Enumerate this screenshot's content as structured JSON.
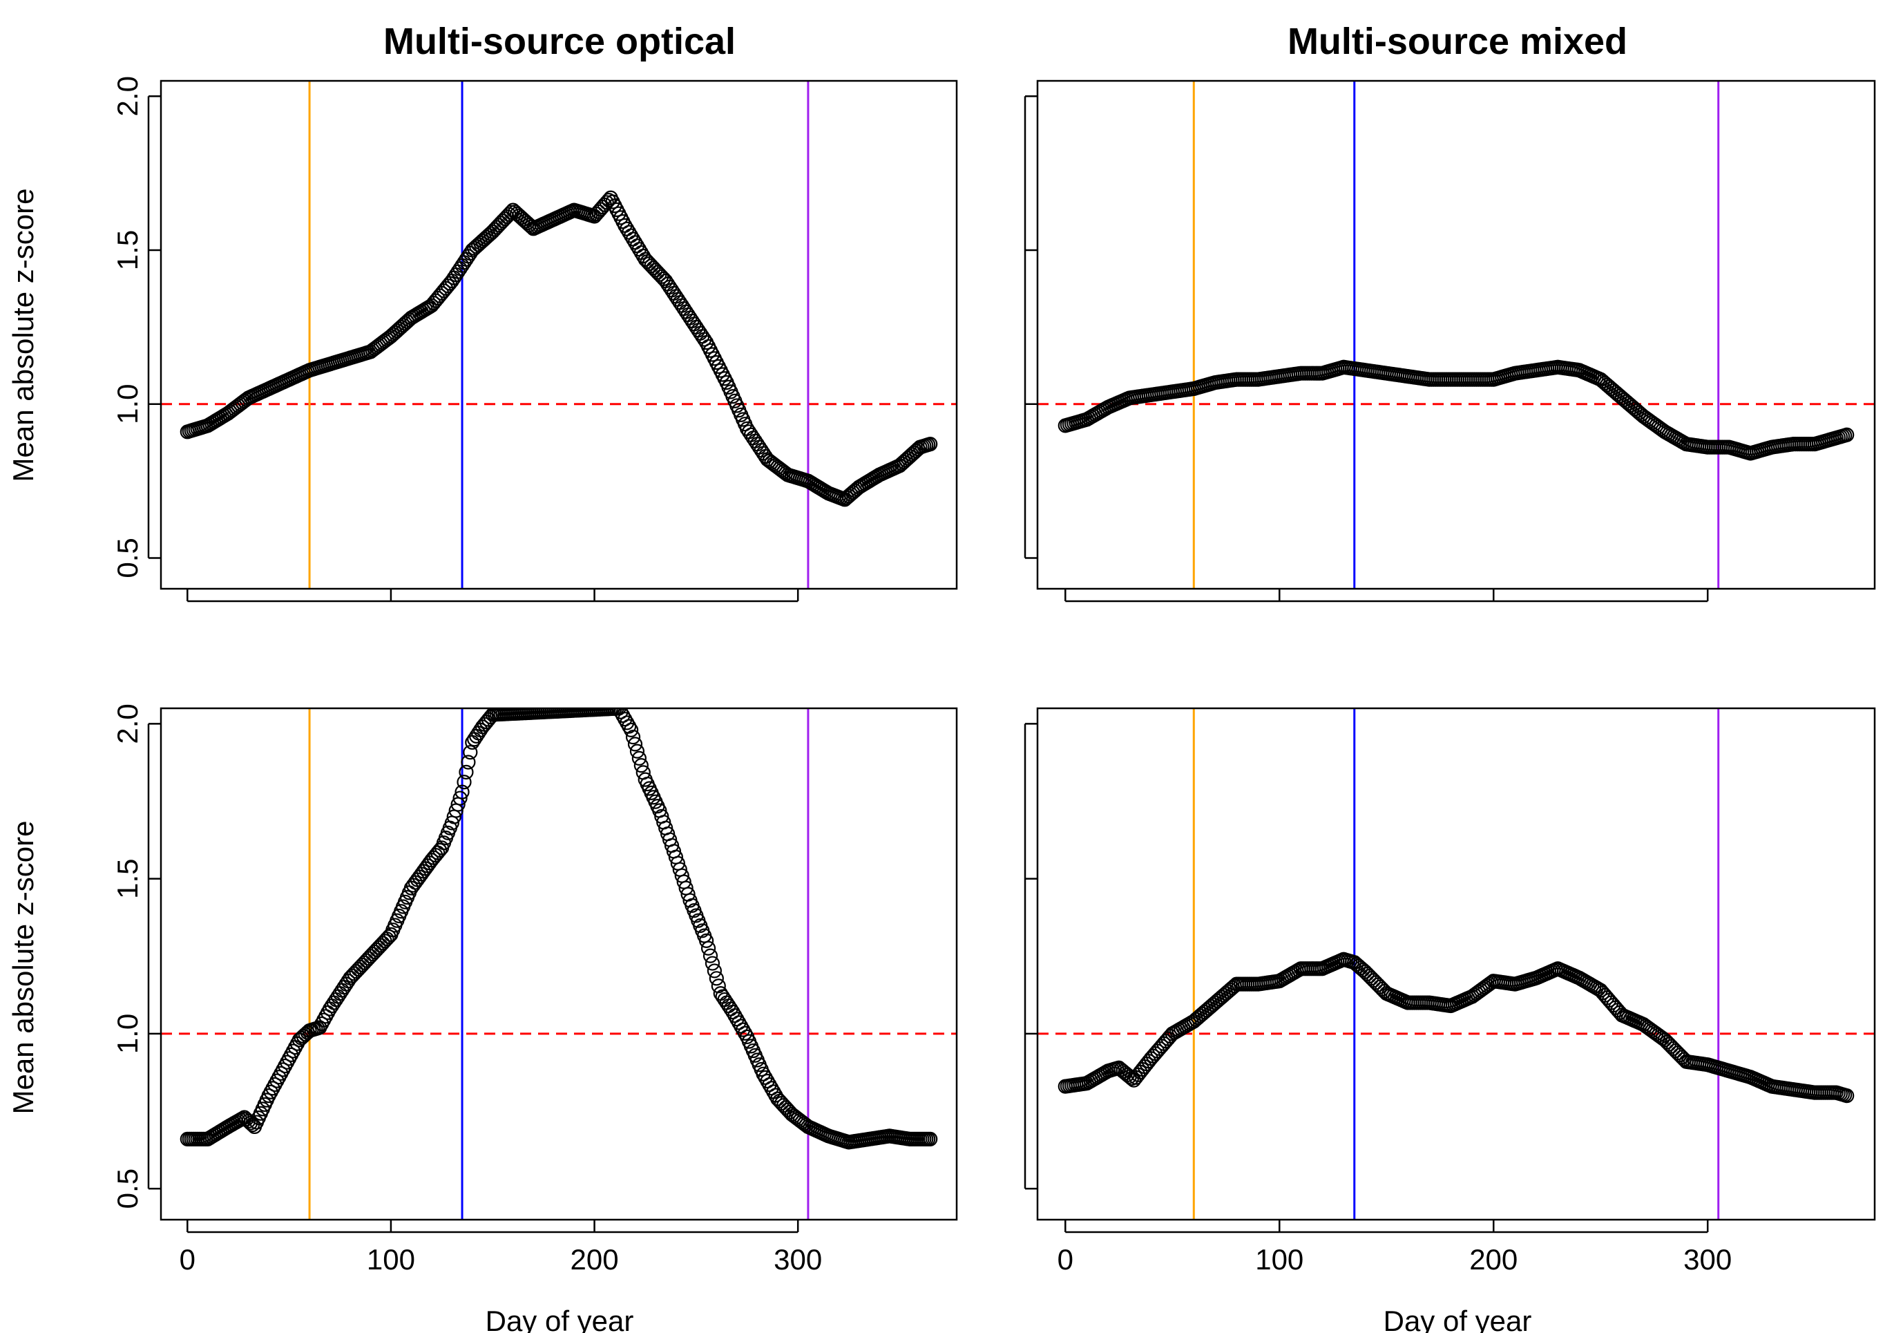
{
  "chart_data": [
    {
      "type": "scatter",
      "title": "Multi-source optical",
      "xlabel": "",
      "ylabel": "Mean absolute z-score",
      "xlim": [
        -13,
        378
      ],
      "ylim": [
        0.4,
        2.05
      ],
      "xticks": [
        0,
        100,
        200,
        300
      ],
      "show_xtick_labels": false,
      "yticks": [
        0.5,
        1.0,
        1.5,
        2.0
      ],
      "ytick_labels": [
        "0.5",
        "1.0",
        "1.5",
        "2.0"
      ],
      "reference_line": {
        "y": 1.0,
        "color": "#ff0000",
        "style": "dashed"
      },
      "vertical_lines": [
        {
          "x": 60,
          "color": "#ffa500"
        },
        {
          "x": 135,
          "color": "#0000ff"
        },
        {
          "x": 305,
          "color": "#a020f0"
        }
      ],
      "series": [
        {
          "marker": "open-circle",
          "color": "#000000",
          "points": [
            [
              0,
              0.91
            ],
            [
              10,
              0.93
            ],
            [
              20,
              0.97
            ],
            [
              30,
              1.02
            ],
            [
              40,
              1.05
            ],
            [
              50,
              1.08
            ],
            [
              60,
              1.11
            ],
            [
              70,
              1.13
            ],
            [
              80,
              1.15
            ],
            [
              90,
              1.17
            ],
            [
              100,
              1.22
            ],
            [
              110,
              1.28
            ],
            [
              120,
              1.32
            ],
            [
              130,
              1.4
            ],
            [
              135,
              1.45
            ],
            [
              140,
              1.5
            ],
            [
              150,
              1.56
            ],
            [
              160,
              1.63
            ],
            [
              170,
              1.57
            ],
            [
              180,
              1.6
            ],
            [
              190,
              1.63
            ],
            [
              200,
              1.61
            ],
            [
              208,
              1.67
            ],
            [
              215,
              1.58
            ],
            [
              225,
              1.47
            ],
            [
              235,
              1.4
            ],
            [
              245,
              1.3
            ],
            [
              255,
              1.2
            ],
            [
              265,
              1.07
            ],
            [
              275,
              0.92
            ],
            [
              285,
              0.82
            ],
            [
              295,
              0.77
            ],
            [
              305,
              0.75
            ],
            [
              315,
              0.71
            ],
            [
              323,
              0.69
            ],
            [
              330,
              0.73
            ],
            [
              340,
              0.77
            ],
            [
              350,
              0.8
            ],
            [
              360,
              0.86
            ],
            [
              365,
              0.87
            ]
          ]
        }
      ]
    },
    {
      "type": "scatter",
      "title": "Multi-source mixed",
      "xlabel": "",
      "ylabel": "",
      "xlim": [
        -13,
        378
      ],
      "ylim": [
        0.4,
        2.05
      ],
      "xticks": [
        0,
        100,
        200,
        300
      ],
      "show_xtick_labels": false,
      "yticks": [
        0.5,
        1.0,
        1.5,
        2.0
      ],
      "show_ytick_labels": false,
      "reference_line": {
        "y": 1.0,
        "color": "#ff0000",
        "style": "dashed"
      },
      "vertical_lines": [
        {
          "x": 60,
          "color": "#ffa500"
        },
        {
          "x": 135,
          "color": "#0000ff"
        },
        {
          "x": 305,
          "color": "#a020f0"
        }
      ],
      "series": [
        {
          "marker": "open-circle",
          "color": "#000000",
          "points": [
            [
              0,
              0.93
            ],
            [
              10,
              0.95
            ],
            [
              20,
              0.99
            ],
            [
              30,
              1.02
            ],
            [
              40,
              1.03
            ],
            [
              50,
              1.04
            ],
            [
              60,
              1.05
            ],
            [
              70,
              1.07
            ],
            [
              80,
              1.08
            ],
            [
              90,
              1.08
            ],
            [
              100,
              1.09
            ],
            [
              110,
              1.1
            ],
            [
              120,
              1.1
            ],
            [
              130,
              1.12
            ],
            [
              140,
              1.11
            ],
            [
              150,
              1.1
            ],
            [
              160,
              1.09
            ],
            [
              170,
              1.08
            ],
            [
              180,
              1.08
            ],
            [
              190,
              1.08
            ],
            [
              200,
              1.08
            ],
            [
              210,
              1.1
            ],
            [
              220,
              1.11
            ],
            [
              230,
              1.12
            ],
            [
              240,
              1.11
            ],
            [
              250,
              1.08
            ],
            [
              260,
              1.02
            ],
            [
              270,
              0.96
            ],
            [
              280,
              0.91
            ],
            [
              290,
              0.87
            ],
            [
              300,
              0.86
            ],
            [
              310,
              0.86
            ],
            [
              320,
              0.84
            ],
            [
              330,
              0.86
            ],
            [
              340,
              0.87
            ],
            [
              350,
              0.87
            ],
            [
              360,
              0.89
            ],
            [
              365,
              0.9
            ]
          ]
        }
      ]
    },
    {
      "type": "scatter",
      "title": "",
      "xlabel": "Day of year",
      "ylabel": "Mean absolute z-score",
      "xlim": [
        -13,
        378
      ],
      "ylim": [
        0.4,
        2.05
      ],
      "xticks": [
        0,
        100,
        200,
        300
      ],
      "xtick_labels": [
        "0",
        "100",
        "200",
        "300"
      ],
      "yticks": [
        0.5,
        1.0,
        1.5,
        2.0
      ],
      "ytick_labels": [
        "0.5",
        "1.0",
        "1.5",
        "2.0"
      ],
      "reference_line": {
        "y": 1.0,
        "color": "#ff0000",
        "style": "dashed"
      },
      "vertical_lines": [
        {
          "x": 60,
          "color": "#ffa500"
        },
        {
          "x": 135,
          "color": "#0000ff"
        },
        {
          "x": 305,
          "color": "#a020f0"
        }
      ],
      "series": [
        {
          "marker": "open-circle",
          "color": "#000000",
          "points": [
            [
              0,
              0.66
            ],
            [
              10,
              0.66
            ],
            [
              20,
              0.7
            ],
            [
              28,
              0.73
            ],
            [
              33,
              0.7
            ],
            [
              40,
              0.8
            ],
            [
              50,
              0.92
            ],
            [
              55,
              0.98
            ],
            [
              60,
              1.01
            ],
            [
              65,
              1.02
            ],
            [
              70,
              1.08
            ],
            [
              80,
              1.18
            ],
            [
              90,
              1.25
            ],
            [
              100,
              1.32
            ],
            [
              110,
              1.47
            ],
            [
              120,
              1.56
            ],
            [
              125,
              1.6
            ],
            [
              130,
              1.68
            ],
            [
              135,
              1.78
            ],
            [
              140,
              1.94
            ],
            [
              145,
              1.99
            ],
            [
              150,
              2.03
            ],
            [
              212,
              2.05
            ],
            [
              218,
              1.98
            ],
            [
              225,
              1.82
            ],
            [
              232,
              1.72
            ],
            [
              240,
              1.57
            ],
            [
              247,
              1.43
            ],
            [
              255,
              1.3
            ],
            [
              262,
              1.13
            ],
            [
              268,
              1.07
            ],
            [
              275,
              0.99
            ],
            [
              283,
              0.87
            ],
            [
              290,
              0.79
            ],
            [
              297,
              0.74
            ],
            [
              305,
              0.7
            ],
            [
              315,
              0.67
            ],
            [
              325,
              0.65
            ],
            [
              335,
              0.66
            ],
            [
              345,
              0.67
            ],
            [
              355,
              0.66
            ],
            [
              365,
              0.66
            ]
          ]
        }
      ]
    },
    {
      "type": "scatter",
      "title": "",
      "xlabel": "Day of year",
      "ylabel": "",
      "xlim": [
        -13,
        378
      ],
      "ylim": [
        0.4,
        2.05
      ],
      "xticks": [
        0,
        100,
        200,
        300
      ],
      "xtick_labels": [
        "0",
        "100",
        "200",
        "300"
      ],
      "yticks": [
        0.5,
        1.0,
        1.5,
        2.0
      ],
      "show_ytick_labels": false,
      "reference_line": {
        "y": 1.0,
        "color": "#ff0000",
        "style": "dashed"
      },
      "vertical_lines": [
        {
          "x": 60,
          "color": "#ffa500"
        },
        {
          "x": 135,
          "color": "#0000ff"
        },
        {
          "x": 305,
          "color": "#a020f0"
        }
      ],
      "series": [
        {
          "marker": "open-circle",
          "color": "#000000",
          "points": [
            [
              0,
              0.83
            ],
            [
              10,
              0.84
            ],
            [
              20,
              0.88
            ],
            [
              25,
              0.89
            ],
            [
              32,
              0.85
            ],
            [
              40,
              0.92
            ],
            [
              50,
              1.0
            ],
            [
              60,
              1.04
            ],
            [
              70,
              1.1
            ],
            [
              80,
              1.16
            ],
            [
              90,
              1.16
            ],
            [
              100,
              1.17
            ],
            [
              110,
              1.21
            ],
            [
              120,
              1.21
            ],
            [
              130,
              1.24
            ],
            [
              135,
              1.23
            ],
            [
              140,
              1.2
            ],
            [
              150,
              1.13
            ],
            [
              160,
              1.1
            ],
            [
              170,
              1.1
            ],
            [
              180,
              1.09
            ],
            [
              190,
              1.12
            ],
            [
              200,
              1.17
            ],
            [
              210,
              1.16
            ],
            [
              220,
              1.18
            ],
            [
              230,
              1.21
            ],
            [
              240,
              1.18
            ],
            [
              250,
              1.14
            ],
            [
              260,
              1.06
            ],
            [
              270,
              1.03
            ],
            [
              280,
              0.98
            ],
            [
              290,
              0.91
            ],
            [
              300,
              0.9
            ],
            [
              310,
              0.88
            ],
            [
              320,
              0.86
            ],
            [
              330,
              0.83
            ],
            [
              340,
              0.82
            ],
            [
              350,
              0.81
            ],
            [
              360,
              0.81
            ],
            [
              365,
              0.8
            ]
          ]
        }
      ]
    }
  ]
}
